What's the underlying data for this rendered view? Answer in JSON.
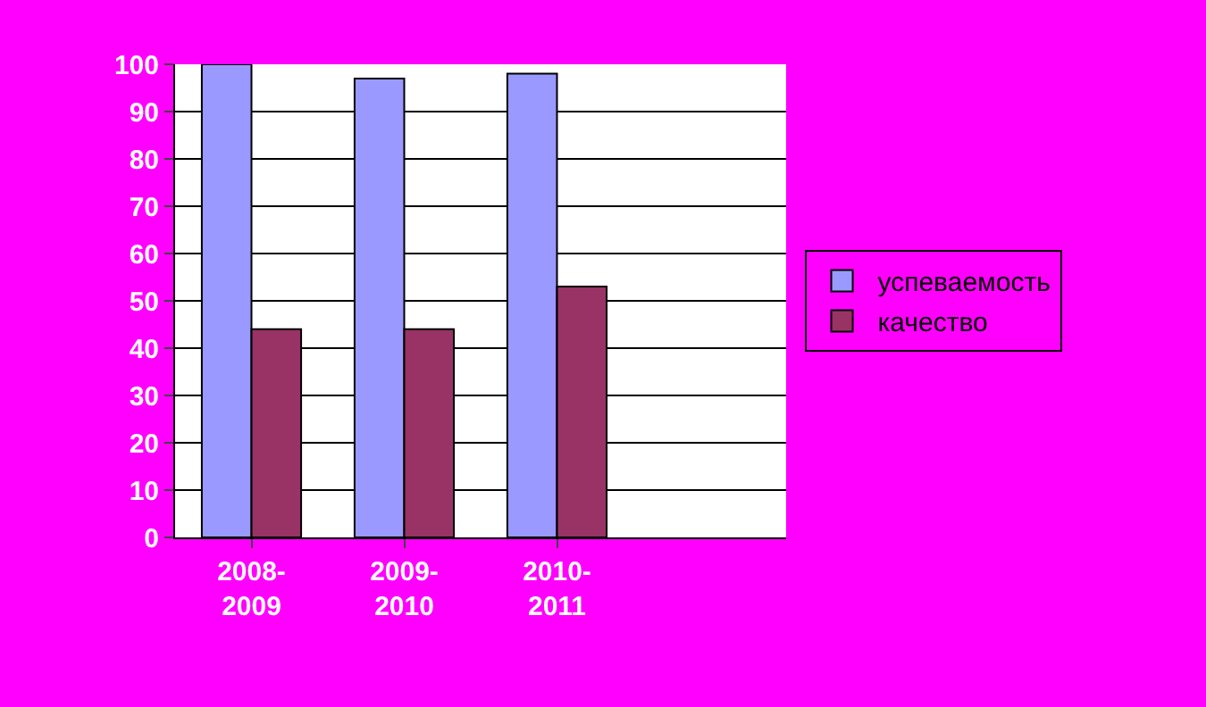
{
  "chart_data": {
    "type": "bar",
    "categories": [
      "2008-2009",
      "2009-2010",
      "2010-2011",
      null
    ],
    "series": [
      {
        "name": "успеваемость",
        "color": "#9999ff",
        "values": [
          100,
          97,
          98,
          null
        ]
      },
      {
        "name": "качество",
        "color": "#993366",
        "values": [
          44,
          44,
          53,
          null
        ]
      }
    ],
    "ylim": [
      0,
      100
    ],
    "yticks": [
      0,
      10,
      20,
      30,
      40,
      50,
      60,
      70,
      80,
      90,
      100
    ],
    "grid": "y",
    "legend": "right"
  }
}
